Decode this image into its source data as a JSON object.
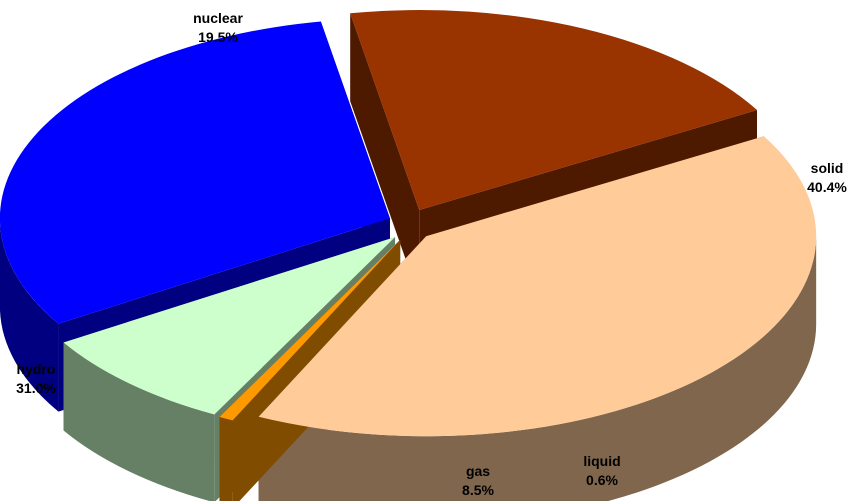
{
  "chart_data": {
    "type": "pie",
    "style": "3d-exploded",
    "slices": [
      {
        "label": "solid",
        "value": 40.4,
        "value_label": "40.4%",
        "top_color": "#FFCC99",
        "side_color": "#7F664D"
      },
      {
        "label": "liquid",
        "value": 0.6,
        "value_label": "0.6%",
        "top_color": "#FF9900",
        "side_color": "#804C00"
      },
      {
        "label": "gas",
        "value": 8.5,
        "value_label": "8.5%",
        "top_color": "#CCFFCC",
        "side_color": "#668066"
      },
      {
        "label": "hydro",
        "value": 31.0,
        "value_label": "31.0%",
        "top_color": "#0000FF",
        "side_color": "#000080"
      },
      {
        "label": "nuclear",
        "value": 19.5,
        "value_label": "19.5%",
        "top_color": "#993300",
        "side_color": "#4D1A00"
      }
    ]
  }
}
